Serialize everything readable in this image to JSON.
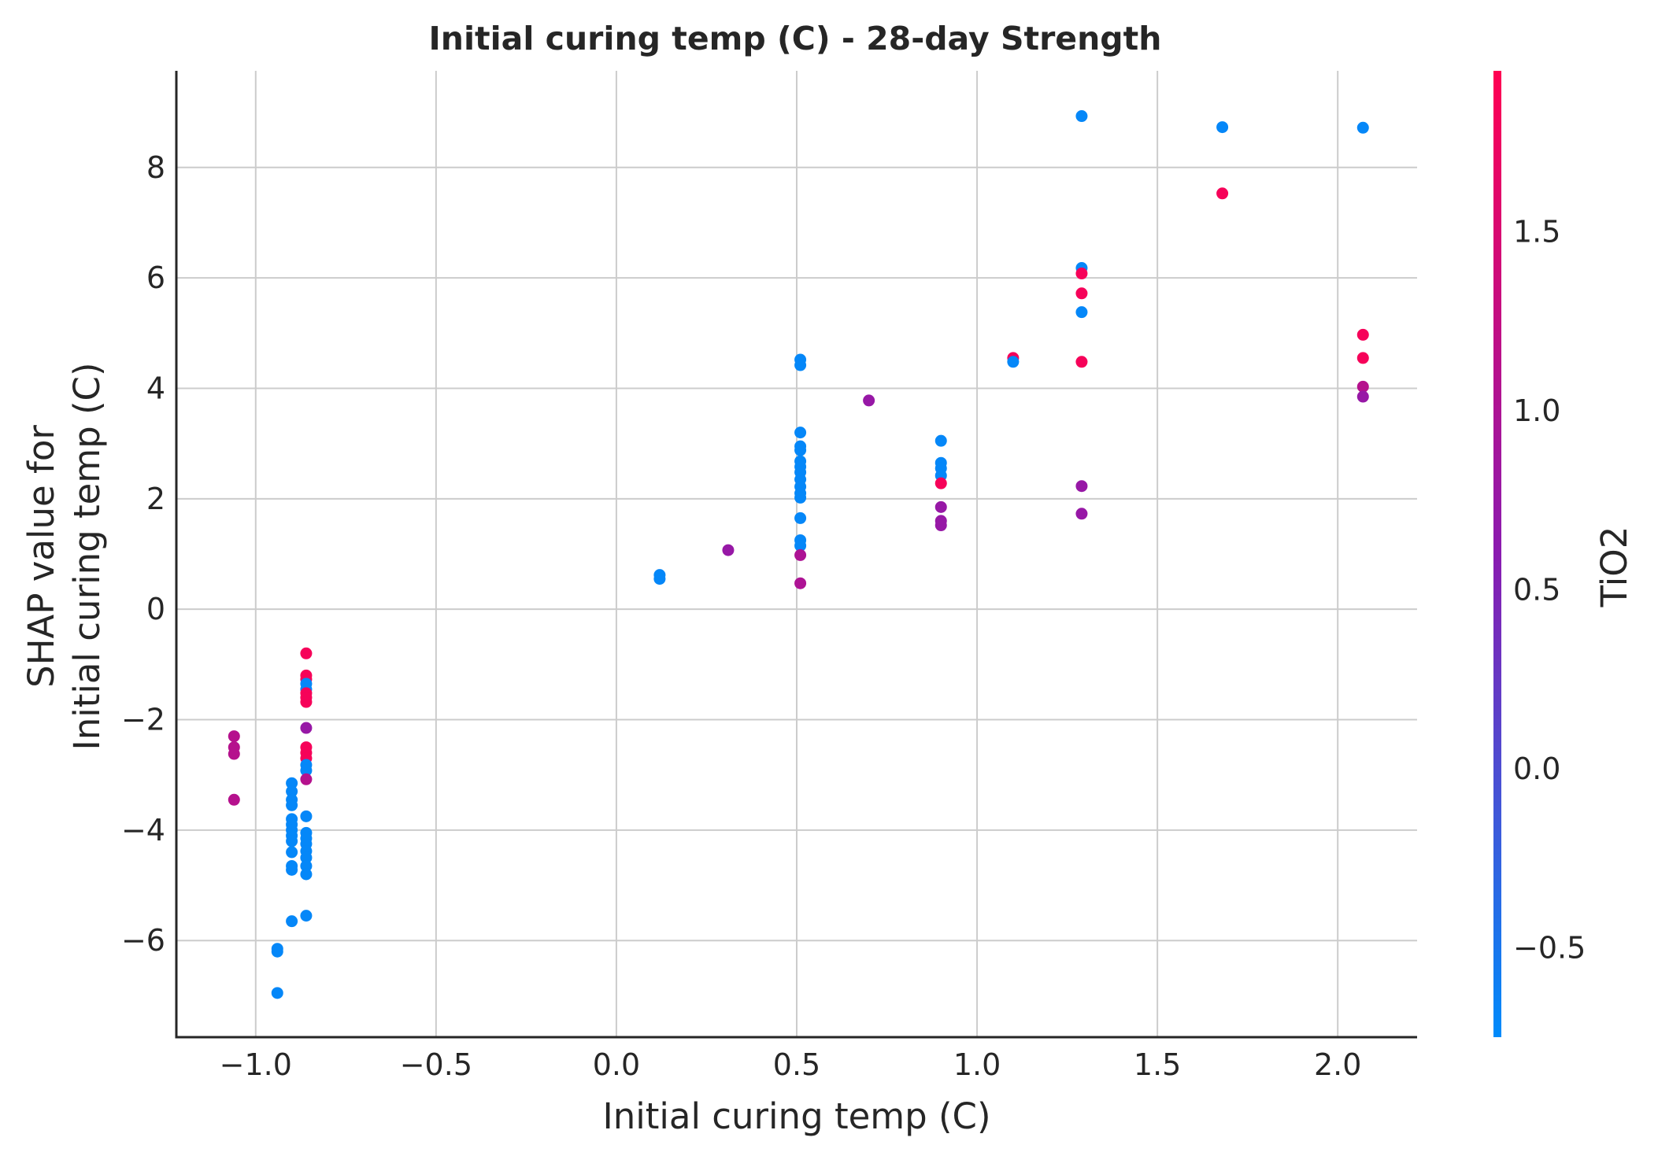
{
  "chart_data": {
    "type": "scatter",
    "title": "Initial curing temp (C) - 28-day Strength",
    "xlabel": "Initial curing temp (C)",
    "ylabel_lines": [
      "SHAP value for",
      "Initial curing temp (C)"
    ],
    "xlim": [
      -1.22,
      2.22
    ],
    "ylim": [
      -7.75,
      9.75
    ],
    "xticks": [
      -1.0,
      -0.5,
      0.0,
      0.5,
      1.0,
      1.5,
      2.0
    ],
    "xtick_labels": [
      "−1.0",
      "−0.5",
      "0.0",
      "0.5",
      "1.0",
      "1.5",
      "2.0"
    ],
    "yticks": [
      -6,
      -4,
      -2,
      0,
      2,
      4,
      6,
      8
    ],
    "ytick_labels": [
      "−6",
      "−4",
      "−2",
      "0",
      "2",
      "4",
      "6",
      "8"
    ],
    "grid": true,
    "colorbar": {
      "label": "TiO2",
      "range": [
        -0.75,
        1.95
      ],
      "ticks": [
        -0.5,
        0.0,
        0.5,
        1.0,
        1.5
      ],
      "tick_labels": [
        "−0.5",
        "0.0",
        "0.5",
        "1.0",
        "1.5"
      ],
      "colors": [
        "#008bfb",
        "#8a1bb0",
        "#ff0052"
      ]
    },
    "points": [
      {
        "x": -1.06,
        "y": -2.3,
        "c": 1.1
      },
      {
        "x": -1.06,
        "y": -2.5,
        "c": 1.1
      },
      {
        "x": -1.06,
        "y": -2.62,
        "c": 1.1
      },
      {
        "x": -1.06,
        "y": -3.45,
        "c": 1.1
      },
      {
        "x": -0.94,
        "y": -6.15,
        "c": -0.7
      },
      {
        "x": -0.94,
        "y": -6.2,
        "c": -0.7
      },
      {
        "x": -0.94,
        "y": -6.95,
        "c": -0.7
      },
      {
        "x": -0.9,
        "y": -3.15,
        "c": -0.7
      },
      {
        "x": -0.9,
        "y": -3.3,
        "c": -0.7
      },
      {
        "x": -0.9,
        "y": -3.45,
        "c": -0.7
      },
      {
        "x": -0.9,
        "y": -3.55,
        "c": -0.7
      },
      {
        "x": -0.9,
        "y": -3.8,
        "c": -0.7
      },
      {
        "x": -0.9,
        "y": -3.9,
        "c": -0.7
      },
      {
        "x": -0.9,
        "y": -4.0,
        "c": -0.7
      },
      {
        "x": -0.9,
        "y": -4.1,
        "c": -0.7
      },
      {
        "x": -0.9,
        "y": -4.2,
        "c": -0.7
      },
      {
        "x": -0.9,
        "y": -4.4,
        "c": -0.7
      },
      {
        "x": -0.9,
        "y": -4.65,
        "c": -0.7
      },
      {
        "x": -0.9,
        "y": -4.72,
        "c": -0.7
      },
      {
        "x": -0.9,
        "y": -5.65,
        "c": -0.7
      },
      {
        "x": -0.86,
        "y": -0.8,
        "c": 1.85
      },
      {
        "x": -0.86,
        "y": -1.2,
        "c": 1.85
      },
      {
        "x": -0.86,
        "y": -1.27,
        "c": 1.85
      },
      {
        "x": -0.86,
        "y": -1.35,
        "c": -0.7
      },
      {
        "x": -0.86,
        "y": -1.45,
        "c": -0.7
      },
      {
        "x": -0.86,
        "y": -1.52,
        "c": 1.85
      },
      {
        "x": -0.86,
        "y": -1.6,
        "c": 1.85
      },
      {
        "x": -0.86,
        "y": -1.68,
        "c": 1.85
      },
      {
        "x": -0.86,
        "y": -2.15,
        "c": 0.75
      },
      {
        "x": -0.86,
        "y": -2.5,
        "c": 1.85
      },
      {
        "x": -0.86,
        "y": -2.6,
        "c": 1.85
      },
      {
        "x": -0.86,
        "y": -2.7,
        "c": 1.85
      },
      {
        "x": -0.86,
        "y": -2.82,
        "c": -0.7
      },
      {
        "x": -0.86,
        "y": -2.92,
        "c": -0.7
      },
      {
        "x": -0.86,
        "y": -3.08,
        "c": 1.1
      },
      {
        "x": -0.86,
        "y": -3.75,
        "c": -0.7
      },
      {
        "x": -0.86,
        "y": -4.05,
        "c": -0.7
      },
      {
        "x": -0.86,
        "y": -4.15,
        "c": -0.7
      },
      {
        "x": -0.86,
        "y": -4.25,
        "c": -0.7
      },
      {
        "x": -0.86,
        "y": -4.38,
        "c": -0.7
      },
      {
        "x": -0.86,
        "y": -4.5,
        "c": -0.7
      },
      {
        "x": -0.86,
        "y": -4.65,
        "c": -0.7
      },
      {
        "x": -0.86,
        "y": -4.8,
        "c": -0.7
      },
      {
        "x": -0.86,
        "y": -5.55,
        "c": -0.7
      },
      {
        "x": 0.12,
        "y": 0.62,
        "c": -0.7
      },
      {
        "x": 0.12,
        "y": 0.55,
        "c": -0.7
      },
      {
        "x": 0.31,
        "y": 1.07,
        "c": 0.75
      },
      {
        "x": 0.51,
        "y": 4.52,
        "c": -0.7
      },
      {
        "x": 0.51,
        "y": 4.42,
        "c": -0.7
      },
      {
        "x": 0.51,
        "y": 3.2,
        "c": -0.7
      },
      {
        "x": 0.51,
        "y": 2.95,
        "c": -0.7
      },
      {
        "x": 0.51,
        "y": 2.88,
        "c": -0.7
      },
      {
        "x": 0.51,
        "y": 2.68,
        "c": -0.7
      },
      {
        "x": 0.51,
        "y": 2.58,
        "c": -0.7
      },
      {
        "x": 0.51,
        "y": 2.48,
        "c": -0.7
      },
      {
        "x": 0.51,
        "y": 2.35,
        "c": -0.7
      },
      {
        "x": 0.51,
        "y": 2.22,
        "c": -0.7
      },
      {
        "x": 0.51,
        "y": 2.1,
        "c": -0.7
      },
      {
        "x": 0.51,
        "y": 2.02,
        "c": -0.7
      },
      {
        "x": 0.51,
        "y": 1.65,
        "c": -0.7
      },
      {
        "x": 0.51,
        "y": 1.25,
        "c": -0.7
      },
      {
        "x": 0.51,
        "y": 1.15,
        "c": -0.7
      },
      {
        "x": 0.51,
        "y": 0.98,
        "c": 1.0
      },
      {
        "x": 0.51,
        "y": 0.47,
        "c": 1.0
      },
      {
        "x": 0.7,
        "y": 3.78,
        "c": 0.75
      },
      {
        "x": 0.9,
        "y": 3.05,
        "c": -0.7
      },
      {
        "x": 0.9,
        "y": 2.65,
        "c": -0.7
      },
      {
        "x": 0.9,
        "y": 2.55,
        "c": -0.7
      },
      {
        "x": 0.9,
        "y": 2.42,
        "c": -0.7
      },
      {
        "x": 0.9,
        "y": 2.28,
        "c": 1.85
      },
      {
        "x": 0.9,
        "y": 1.85,
        "c": 0.75
      },
      {
        "x": 0.9,
        "y": 1.6,
        "c": 0.75
      },
      {
        "x": 0.9,
        "y": 1.52,
        "c": 0.75
      },
      {
        "x": 1.1,
        "y": 4.55,
        "c": 1.85
      },
      {
        "x": 1.1,
        "y": 4.48,
        "c": -0.7
      },
      {
        "x": 1.29,
        "y": 8.93,
        "c": -0.7
      },
      {
        "x": 1.29,
        "y": 6.18,
        "c": -0.7
      },
      {
        "x": 1.29,
        "y": 6.08,
        "c": 1.85
      },
      {
        "x": 1.29,
        "y": 5.72,
        "c": 1.85
      },
      {
        "x": 1.29,
        "y": 5.38,
        "c": -0.7
      },
      {
        "x": 1.29,
        "y": 4.48,
        "c": 1.85
      },
      {
        "x": 1.29,
        "y": 2.23,
        "c": 0.75
      },
      {
        "x": 1.29,
        "y": 1.73,
        "c": 0.75
      },
      {
        "x": 1.68,
        "y": 8.73,
        "c": -0.7
      },
      {
        "x": 1.68,
        "y": 7.53,
        "c": 1.85
      },
      {
        "x": 2.07,
        "y": 8.72,
        "c": -0.7
      },
      {
        "x": 2.07,
        "y": 4.97,
        "c": 1.85
      },
      {
        "x": 2.07,
        "y": 4.55,
        "c": 1.85
      },
      {
        "x": 2.07,
        "y": 4.03,
        "c": 1.1
      },
      {
        "x": 2.07,
        "y": 3.85,
        "c": 0.75
      }
    ]
  }
}
